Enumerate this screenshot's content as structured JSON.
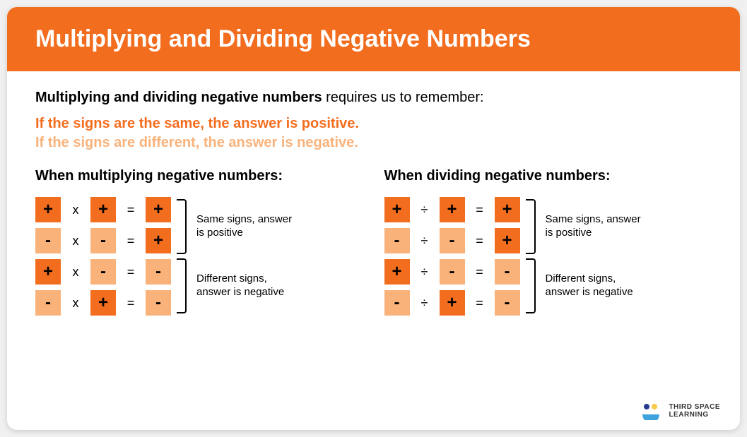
{
  "colors": {
    "header_bg": "#f36d1f",
    "dark_orange": "#f36d1f",
    "light_orange": "#f9b27a",
    "rule_same": "#f36d1f",
    "rule_diff": "#f9b27a",
    "text_black": "#000000",
    "white": "#ffffff"
  },
  "title": "Multiplying and Dividing Negative Numbers",
  "intro_bold": "Multiplying and dividing negative numbers",
  "intro_rest": " requires us to remember:",
  "rule_same": "If the signs are the same, the answer is positive.",
  "rule_diff": "If the signs are different, the answer is negative.",
  "columns": [
    {
      "heading": "When multiplying negative numbers:",
      "op_symbol": "x",
      "rows": [
        {
          "a": "+",
          "a_color": "dark",
          "b": "+",
          "b_color": "dark",
          "r": "+",
          "r_color": "dark"
        },
        {
          "a": "-",
          "a_color": "light",
          "b": "-",
          "b_color": "light",
          "r": "+",
          "r_color": "dark"
        },
        {
          "a": "+",
          "a_color": "dark",
          "b": "-",
          "b_color": "light",
          "r": "-",
          "r_color": "light"
        },
        {
          "a": "-",
          "a_color": "light",
          "b": "+",
          "b_color": "dark",
          "r": "-",
          "r_color": "light"
        }
      ],
      "group_labels": [
        "Same signs,\nanswer is positive",
        "Different signs,\nanswer is negative"
      ]
    },
    {
      "heading": "When dividing negative numbers:",
      "op_symbol": "÷",
      "rows": [
        {
          "a": "+",
          "a_color": "dark",
          "b": "+",
          "b_color": "dark",
          "r": "+",
          "r_color": "dark"
        },
        {
          "a": "-",
          "a_color": "light",
          "b": "-",
          "b_color": "light",
          "r": "+",
          "r_color": "dark"
        },
        {
          "a": "+",
          "a_color": "dark",
          "b": "-",
          "b_color": "light",
          "r": "-",
          "r_color": "light"
        },
        {
          "a": "-",
          "a_color": "light",
          "b": "+",
          "b_color": "dark",
          "r": "-",
          "r_color": "light"
        }
      ],
      "group_labels": [
        "Same signs,\nanswer is positive",
        "Different signs,\nanswer is negative"
      ]
    }
  ],
  "logo": {
    "line1": "THIRD SPACE",
    "line2": "LEARNING",
    "dot_colors": [
      "#2a3a8f",
      "#f7c948",
      "#3ea3dd"
    ]
  }
}
